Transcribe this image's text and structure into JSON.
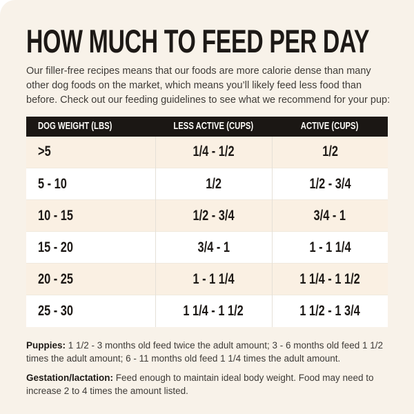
{
  "page": {
    "title": "HOW MUCH TO FEED PER DAY",
    "intro": "Our filler-free recipes means that our foods are more calorie dense than many other dog foods on the market, which means you’ll likely feed less food than before. Check out our feeding guidelines to see what we recommend for your pup:"
  },
  "table": {
    "columns": [
      "DOG WEIGHT (LBS)",
      "LESS ACTIVE (CUPS)",
      "ACTIVE (CUPS)"
    ],
    "rows": [
      {
        "weight": ">5",
        "less_active": "1/4 - 1/2",
        "active": "1/2"
      },
      {
        "weight": "5 - 10",
        "less_active": "1/2",
        "active": "1/2 - 3/4"
      },
      {
        "weight": "10 - 15",
        "less_active": "1/2 - 3/4",
        "active": "3/4 - 1"
      },
      {
        "weight": "15 - 20",
        "less_active": "3/4 - 1",
        "active": "1 - 1 1/4"
      },
      {
        "weight": "20 - 25",
        "less_active": "1 - 1 1/4",
        "active": "1 1/4 - 1 1/2"
      },
      {
        "weight": "25 - 30",
        "less_active": "1 1/4 - 1 1/2",
        "active": "1 1/2 - 1 3/4"
      }
    ]
  },
  "notes": [
    {
      "label": "Puppies:",
      "text": " 1 1/2 - 3 months old feed twice the adult amount; 3 - 6 months old feed 1 1/2 times the adult amount; 6 - 11 months old feed 1 1/4 times the adult amount."
    },
    {
      "label": "Gestation/lactation:",
      "text": " Feed enough to maintain ideal body weight. Food may need to increase 2 to 4 times the amount listed."
    }
  ],
  "colors": {
    "page_background": "#ffffff",
    "card_background": "#f8f2e9",
    "header_background": "#1b1714",
    "header_text": "#fdfcf8",
    "row_cream": "#faf0e3",
    "row_white": "#ffffff",
    "text_dark": "#1d1916",
    "text_body": "#3e3b37",
    "divider_vertical": "#e5e0d7",
    "divider_horizontal": "#f0e9dd"
  }
}
